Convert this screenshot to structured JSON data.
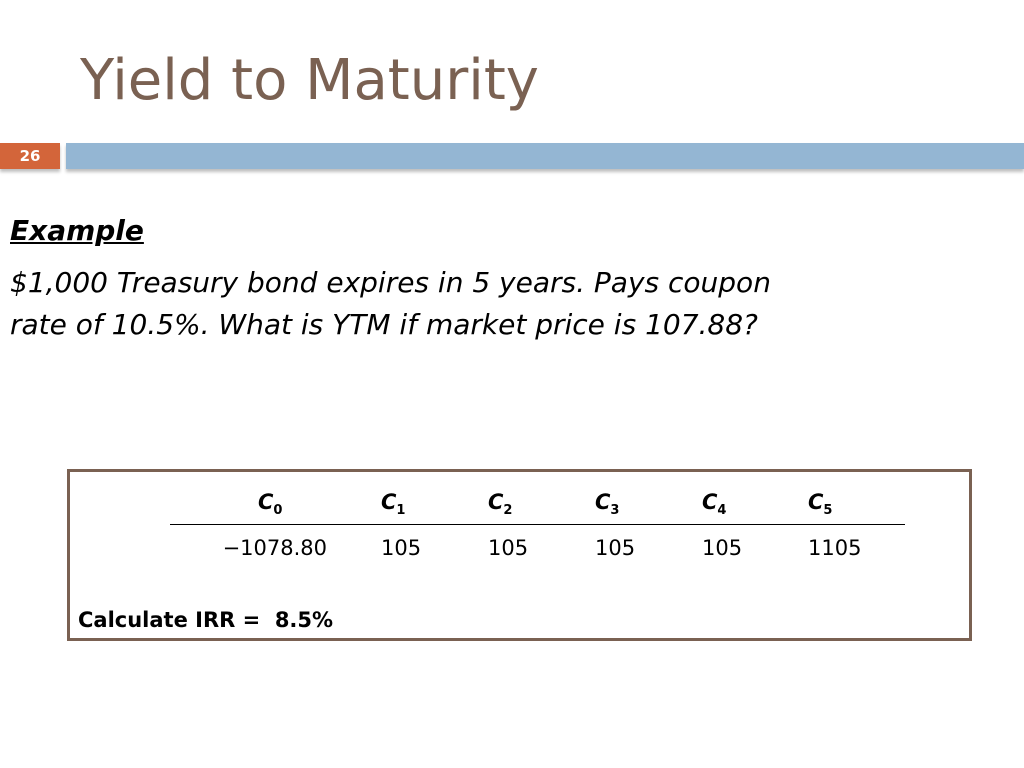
{
  "title": "Yield to Maturity",
  "slide_number": "26",
  "heading": "Example",
  "body": [
    "$1,000 Treasury bond expires in 5 years. Pays coupon",
    "rate of 10.5%. What is YTM if market price is 107.88?"
  ],
  "table": {
    "headers": [
      {
        "base": "C",
        "sub": "0"
      },
      {
        "base": "C",
        "sub": "1"
      },
      {
        "base": "C",
        "sub": "2"
      },
      {
        "base": "C",
        "sub": "3"
      },
      {
        "base": "C",
        "sub": "4"
      },
      {
        "base": "C",
        "sub": "5"
      }
    ],
    "values": [
      "−1078.80",
      "105",
      "105",
      "105",
      "105",
      "1105"
    ]
  },
  "result": "Calculate IRR =  8.5%"
}
